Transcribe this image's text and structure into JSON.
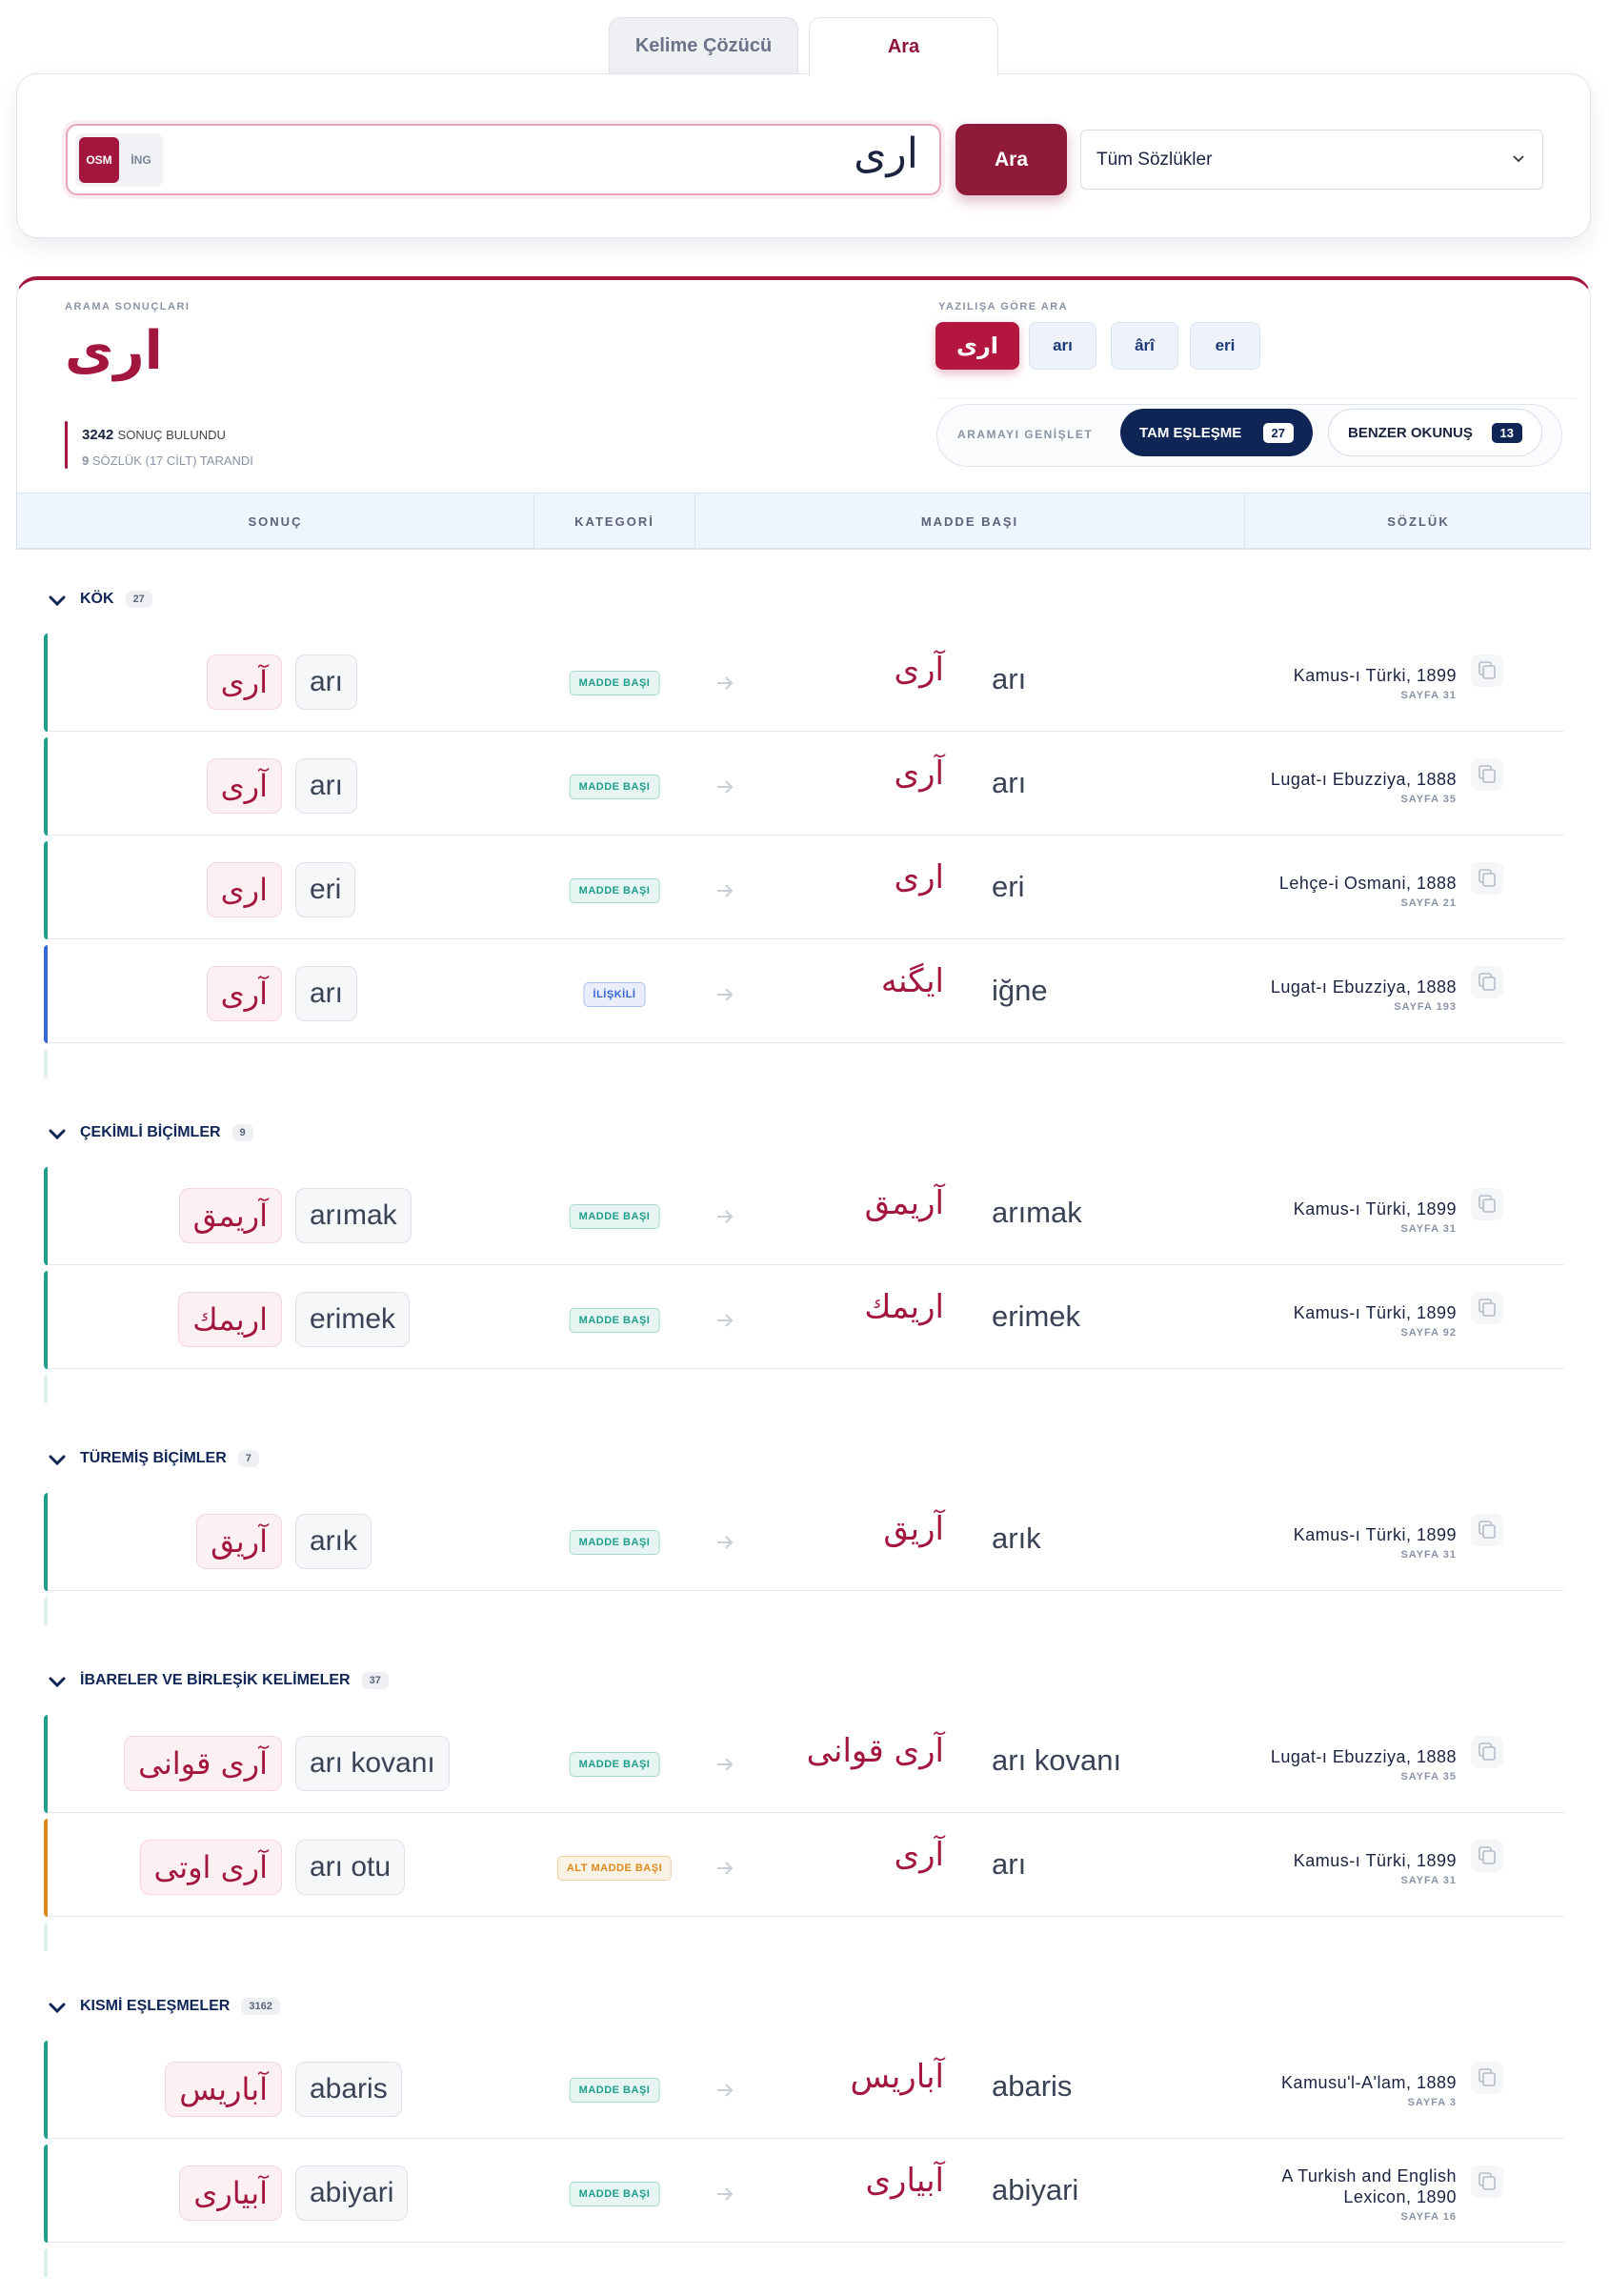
{
  "tabs": [
    "Kelime Çözücü",
    "Ara"
  ],
  "search": {
    "modes": [
      "OSM",
      "İNG"
    ],
    "query": "ارى",
    "button": "Ara",
    "dictionary_select": "Tüm Sözlükler"
  },
  "results": {
    "label": "ARAMA SONUÇLARI",
    "query": "ارى",
    "count": 3242,
    "count_label": "SONUÇ BULUNDU",
    "scanned": 9,
    "scanned_label": "SÖZLÜK (17 CİLT) TARANDI"
  },
  "script_search": {
    "label": "YAZILIŞA GÖRE ARA",
    "options": [
      "ارى",
      "arı",
      "ârî",
      "eri"
    ]
  },
  "expand": {
    "label": "ARAMAYI GENİŞLET",
    "options": [
      {
        "label": "TAM EŞLEŞME",
        "count": 27
      },
      {
        "label": "BENZER OKUNUŞ",
        "count": 13
      }
    ]
  },
  "columns": [
    "SONUÇ",
    "KATEGORİ",
    "MADDE BAŞI",
    "SÖZLÜK"
  ],
  "groups": [
    {
      "title": "KÖK",
      "count": 27,
      "rows": [
        {
          "arabic": "آری",
          "latin": "arı",
          "category": "MADDE BAŞI",
          "head_arabic": "آری",
          "head_latin": "arı",
          "dictionary": "Kamus-ı Türki, 1899",
          "page": "SAYFA 31",
          "accent": "#1f9e8c"
        },
        {
          "arabic": "آری",
          "latin": "arı",
          "category": "MADDE BAŞI",
          "head_arabic": "آری",
          "head_latin": "arı",
          "dictionary": "Lugat-ı Ebuzziya, 1888",
          "page": "SAYFA 35",
          "accent": "#1f9e8c"
        },
        {
          "arabic": "اری",
          "latin": "eri",
          "category": "MADDE BAŞI",
          "head_arabic": "اری",
          "head_latin": "eri",
          "dictionary": "Lehçe-i Osmani, 1888",
          "page": "SAYFA 21",
          "accent": "#1f9e8c"
        },
        {
          "arabic": "آری",
          "latin": "arı",
          "category": "İLİŞKİLİ",
          "head_arabic": "ایگنه",
          "head_latin": "iğne",
          "dictionary": "Lugat-ı Ebuzziya, 1888",
          "page": "SAYFA 193",
          "accent": "#3567d6"
        }
      ]
    },
    {
      "title": "ÇEKİMLİ BİÇİMLER",
      "count": 9,
      "rows": [
        {
          "arabic": "آریمق",
          "latin": "arımak",
          "category": "MADDE BAŞI",
          "head_arabic": "آریمق",
          "head_latin": "arımak",
          "dictionary": "Kamus-ı Türki, 1899",
          "page": "SAYFA 31",
          "accent": "#1f9e8c"
        },
        {
          "arabic": "اریمك",
          "latin": "erimek",
          "category": "MADDE BAŞI",
          "head_arabic": "اریمك",
          "head_latin": "erimek",
          "dictionary": "Kamus-ı Türki, 1899",
          "page": "SAYFA 92",
          "accent": "#1f9e8c"
        }
      ]
    },
    {
      "title": "TÜREMİŞ BİÇİMLER",
      "count": 7,
      "rows": [
        {
          "arabic": "آریق",
          "latin": "arık",
          "category": "MADDE BAŞI",
          "head_arabic": "آریق",
          "head_latin": "arık",
          "dictionary": "Kamus-ı Türki, 1899",
          "page": "SAYFA 31",
          "accent": "#1f9e8c"
        }
      ]
    },
    {
      "title": "İBARELER VE BİRLEŞİK KELİMELER",
      "count": 37,
      "rows": [
        {
          "arabic": "آری قوانی",
          "latin": "arı kovanı",
          "category": "MADDE BAŞI",
          "head_arabic": "آری قوانی",
          "head_latin": "arı kovanı",
          "dictionary": "Lugat-ı Ebuzziya, 1888",
          "page": "SAYFA 35",
          "accent": "#1f9e8c"
        },
        {
          "arabic": "آری اوتی",
          "latin": "arı otu",
          "category": "ALT MADDE BAŞI",
          "head_arabic": "آری",
          "head_latin": "arı",
          "dictionary": "Kamus-ı Türki, 1899",
          "page": "SAYFA 31",
          "accent": "#d98a18"
        }
      ]
    },
    {
      "title": "KISMİ EŞLEŞMELER",
      "count": 3162,
      "rows": [
        {
          "arabic": "آباریس",
          "latin": "abaris",
          "category": "MADDE BAŞI",
          "head_arabic": "آباریس",
          "head_latin": "abaris",
          "dictionary": "Kamusu'l-A'lam, 1889",
          "page": "SAYFA 3",
          "accent": "#1f9e8c"
        },
        {
          "arabic": "آبیاری",
          "latin": "abiyari",
          "category": "MADDE BAŞI",
          "head_arabic": "آبیاری",
          "head_latin": "abiyari",
          "dictionary": "A Turkish and English Lexicon, 1890",
          "page": "SAYFA 16",
          "accent": "#1f9e8c"
        }
      ]
    }
  ]
}
